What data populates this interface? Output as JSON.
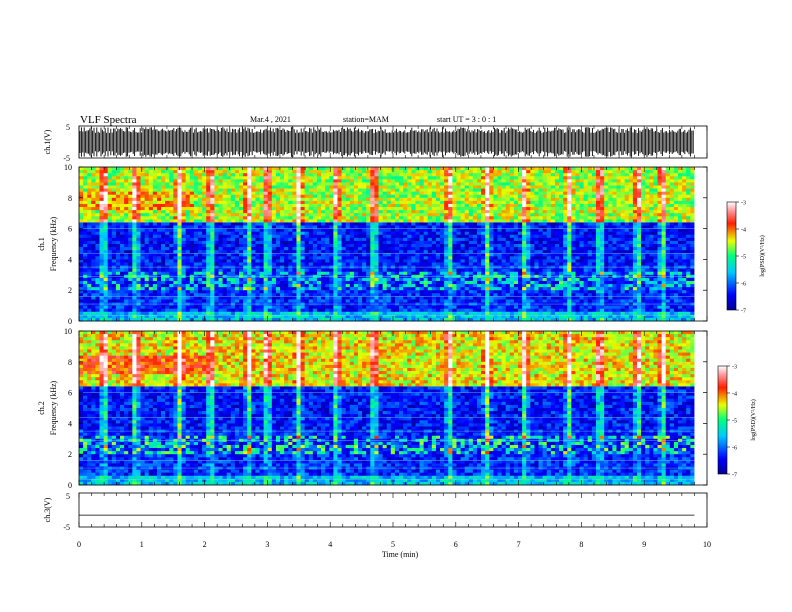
{
  "header": {
    "title": "VLF Spectra",
    "date": "Mar.4 , 2021",
    "station": "station=MAM",
    "start_ut": "start UT =  3 : 0  : 1"
  },
  "chart_data": [
    {
      "type": "line",
      "panel": "ch1_waveform",
      "ylabel": "ch.1(V)",
      "ylim": [
        -5,
        5
      ],
      "y_ticks": [
        "5",
        "-5"
      ],
      "xlim": [
        0,
        10
      ],
      "series": [
        {
          "values_range": [
            -5,
            5
          ],
          "x_range_min": [
            0,
            9.8
          ]
        }
      ]
    },
    {
      "type": "heatmap",
      "panel": "ch1_spectrogram",
      "ylabel": "ch.1\nFrequency (kHz)",
      "ylim": [
        0,
        10
      ],
      "y_ticks": [
        "0",
        "2",
        "4",
        "6",
        "8",
        "10"
      ],
      "xlim": [
        0,
        10
      ],
      "data_x_range": [
        0,
        9.8
      ],
      "colorbar": {
        "label": "log(PSD)(V²/Hz)",
        "range": [
          -7,
          -3
        ],
        "ticks": [
          "-3",
          "-4",
          "-5",
          "-6",
          "-7"
        ]
      },
      "bands": [
        {
          "freq_khz": [
            6.5,
            10
          ],
          "level": -4.6,
          "note": "broad band"
        },
        {
          "freq_khz": [
            7.3,
            8.3
          ],
          "x_min": [
            0,
            1.8
          ],
          "level": -4.2
        },
        {
          "freq_khz": [
            2.0,
            3.2
          ],
          "level": -5.2,
          "note": "intermittent bursts"
        }
      ],
      "bursts_x_min": [
        0.4,
        0.9,
        1.6,
        2.1,
        2.7,
        3.0,
        3.5,
        4.1,
        4.7,
        5.9,
        6.5,
        7.1,
        7.8,
        8.3,
        8.9,
        9.3
      ]
    },
    {
      "type": "heatmap",
      "panel": "ch2_spectrogram",
      "ylabel": "ch.2\nFrequency (kHz)",
      "ylim": [
        0,
        10
      ],
      "y_ticks": [
        "0",
        "2",
        "4",
        "6",
        "8",
        "10"
      ],
      "xlim": [
        0,
        10
      ],
      "data_x_range": [
        0,
        9.8
      ],
      "colorbar": {
        "label": "log(PSD)(V²/Hz)",
        "range": [
          -7,
          -3
        ],
        "ticks": [
          "-3",
          "-4",
          "-5",
          "-6",
          "-7"
        ]
      },
      "bands": [
        {
          "freq_khz": [
            6.5,
            10
          ],
          "level": -4.4,
          "note": "broad band"
        },
        {
          "freq_khz": [
            7.3,
            8.3
          ],
          "x_min": [
            0,
            2.0
          ],
          "level": -3.9
        },
        {
          "freq_khz": [
            2.0,
            3.2
          ],
          "level": -5.0,
          "note": "intermittent bursts"
        }
      ],
      "bursts_x_min": [
        0.4,
        0.9,
        1.6,
        2.1,
        2.7,
        3.0,
        3.5,
        4.1,
        4.7,
        5.9,
        6.5,
        7.1,
        7.8,
        8.3,
        8.9,
        9.3
      ]
    },
    {
      "type": "line",
      "panel": "ch3_waveform",
      "ylabel": "ch.3(V)",
      "ylim": [
        -5,
        5
      ],
      "y_ticks": [
        "5",
        "-5"
      ],
      "xlim": [
        0,
        10
      ],
      "series": [
        {
          "x": [
            0,
            9.8
          ],
          "values": [
            -1.5,
            -1.5
          ]
        }
      ]
    }
  ],
  "xaxis": {
    "label": "Time (min)",
    "ticks": [
      "0",
      "1",
      "2",
      "3",
      "4",
      "5",
      "6",
      "7",
      "8",
      "9",
      "10"
    ]
  }
}
